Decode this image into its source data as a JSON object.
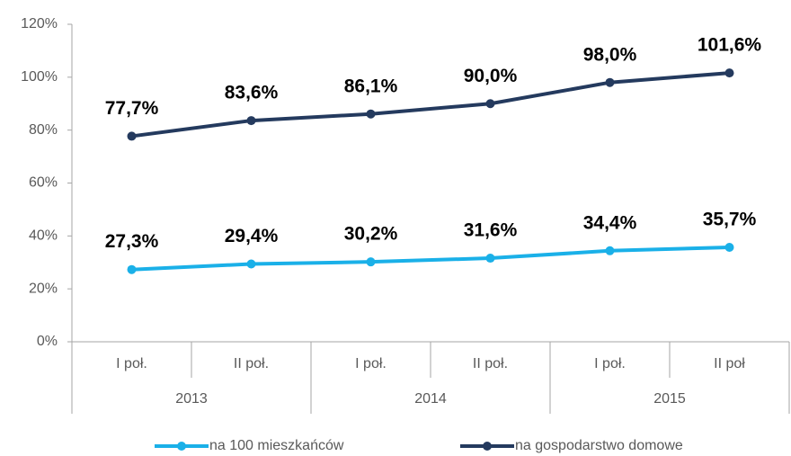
{
  "chart_data": {
    "type": "line",
    "categories": [
      "I poł.",
      "II poł.",
      "I poł.",
      "II poł.",
      "I poł.",
      "II poł"
    ],
    "years": [
      "2013",
      "2014",
      "2015"
    ],
    "series": [
      {
        "name": "na 100 mieszkańców",
        "color": "#1ab0e8",
        "values": [
          27.3,
          29.4,
          30.2,
          31.6,
          34.4,
          35.7
        ],
        "value_labels": [
          "27,3%",
          "29,4%",
          "30,2%",
          "31,6%",
          "34,4%",
          "35,7%"
        ]
      },
      {
        "name": "na gospodarstwo domowe",
        "color": "#243a5e",
        "values": [
          77.7,
          83.6,
          86.1,
          90.0,
          98.0,
          101.6
        ],
        "value_labels": [
          "77,7%",
          "83,6%",
          "86,1%",
          "90,0%",
          "98,0%",
          "101,6%"
        ]
      }
    ],
    "ylim": [
      0,
      120
    ],
    "yticks": [
      {
        "value": 0,
        "label": "0%"
      },
      {
        "value": 20,
        "label": "20%"
      },
      {
        "value": 40,
        "label": "40%"
      },
      {
        "value": 60,
        "label": "60%"
      },
      {
        "value": 80,
        "label": "80%"
      },
      {
        "value": 100,
        "label": "100%"
      },
      {
        "value": 120,
        "label": "120%"
      }
    ],
    "grid": false
  }
}
